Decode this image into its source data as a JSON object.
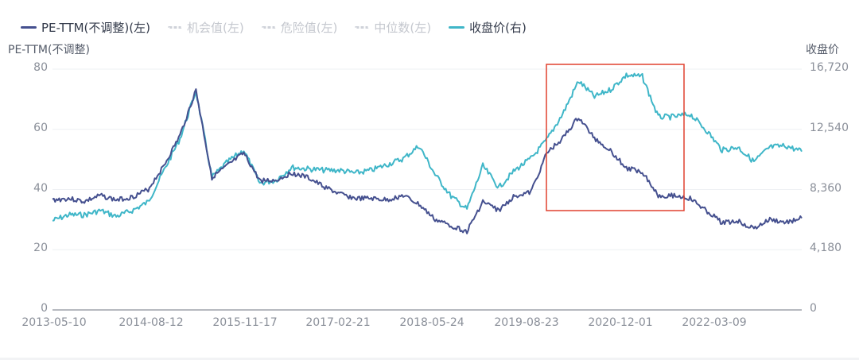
{
  "legend": [
    {
      "label": "PE-TTM(不调整)(左)",
      "color": "#45508f",
      "style": "solid",
      "active": true
    },
    {
      "label": "机会值(左)",
      "color": "#cfd2d9",
      "style": "dotted",
      "active": false
    },
    {
      "label": "危险值(左)",
      "color": "#cfd2d9",
      "style": "dotted",
      "active": false
    },
    {
      "label": "中位数(左)",
      "color": "#cfd2d9",
      "style": "dotted",
      "active": false
    },
    {
      "label": "收盘价(右)",
      "color": "#3fb6c8",
      "style": "solid",
      "active": true
    }
  ],
  "axes": {
    "left_title": "PE-TTM(不调整)",
    "right_title": "收盘价",
    "left_ticks": [
      "80",
      "60",
      "40",
      "20",
      "0"
    ],
    "right_ticks": [
      "16,720",
      "12,540",
      "8,360",
      "4,180",
      "0"
    ],
    "x_ticks": [
      "2013-05-10",
      "2014-08-12",
      "2015-11-17",
      "2017-02-21",
      "2018-05-24",
      "2019-08-23",
      "2020-12-01",
      "2022-03-09"
    ]
  },
  "highlight_box": {
    "color": "#e0412f",
    "x_start": "2019-10",
    "x_end": "2021-09",
    "label": ""
  },
  "chart_data": {
    "type": "line",
    "title": "",
    "xlabel": "",
    "ylabel": "PE-TTM(不调整)",
    "ylabel_right": "收盘价",
    "ylim": [
      0,
      80
    ],
    "ylim_right": [
      0,
      16720
    ],
    "grid": true,
    "legend_position": "top-left",
    "x_ticks": [
      "2013-05-10",
      "2014-08-12",
      "2015-11-17",
      "2017-02-21",
      "2018-05-24",
      "2019-08-23",
      "2020-12-01",
      "2022-03-09"
    ],
    "x": [
      "2013-05",
      "2013-08",
      "2013-11",
      "2014-02",
      "2014-05",
      "2014-08",
      "2014-11",
      "2015-02",
      "2015-04",
      "2015-06",
      "2015-07",
      "2015-09",
      "2015-11",
      "2016-01",
      "2016-03",
      "2016-06",
      "2016-09",
      "2016-12",
      "2017-03",
      "2017-06",
      "2017-09",
      "2017-12",
      "2018-03",
      "2018-06",
      "2018-09",
      "2018-12",
      "2019-01",
      "2019-04",
      "2019-06",
      "2019-09",
      "2019-11",
      "2020-02",
      "2020-05",
      "2020-07",
      "2020-09",
      "2020-12",
      "2021-02",
      "2021-05",
      "2021-08",
      "2021-10",
      "2021-12",
      "2022-03",
      "2022-05",
      "2022-08",
      "2022-10",
      "2022-12",
      "2023-02",
      "2023-04"
    ],
    "series": [
      {
        "name": "PE-TTM(不调整)(左)",
        "axis": "left",
        "color": "#45508f",
        "values": [
          36.5,
          37,
          36,
          38,
          36.5,
          37.5,
          40,
          48,
          58,
          73,
          44,
          48,
          52,
          43,
          43,
          45.5,
          44,
          41,
          38.5,
          37,
          37,
          36.5,
          38,
          35,
          30,
          28,
          26,
          36,
          33,
          38,
          39,
          52,
          57,
          64,
          57,
          53,
          47,
          46,
          38,
          38,
          37,
          33,
          29,
          29.5,
          27,
          30,
          29,
          30.5
        ]
      },
      {
        "name": "收盘价(右)",
        "axis": "right",
        "color": "#3fb6c8",
        "values": [
          6200,
          6600,
          6600,
          6900,
          6500,
          6900,
          7500,
          9700,
          11900,
          15200,
          9200,
          10300,
          11100,
          8800,
          9000,
          9900,
          9800,
          9700,
          9700,
          9500,
          9700,
          10100,
          10500,
          11400,
          9400,
          7900,
          7000,
          10000,
          8500,
          9700,
          10500,
          11800,
          13600,
          15900,
          14800,
          15300,
          16300,
          16200,
          13400,
          13400,
          13600,
          12500,
          11100,
          11300,
          10300,
          11300,
          11400,
          11000
        ]
      }
    ]
  }
}
